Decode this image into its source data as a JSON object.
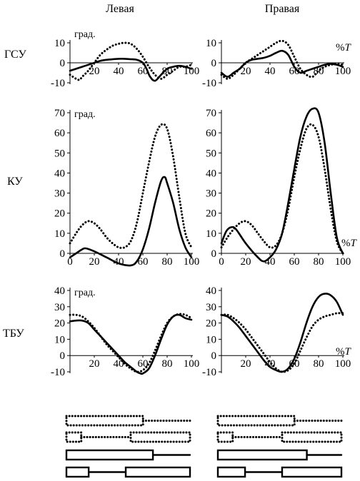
{
  "columns": [
    "Левая",
    "Правая"
  ],
  "row_labels": [
    "ГСУ",
    "КУ",
    "ТБУ"
  ],
  "unit_label": "град.",
  "x_unit_label": "%T",
  "colors": {
    "ink": "#000000"
  },
  "chart_data": [
    {
      "type": "line",
      "row": "ГСУ",
      "side": "Левая",
      "xlim": [
        0,
        100
      ],
      "ylim": [
        -10,
        10
      ],
      "x_ticks": [
        20,
        40,
        60,
        80,
        100
      ],
      "y_ticks": [
        10,
        0,
        -10
      ],
      "series": [
        {
          "style": "solid",
          "x": [
            0,
            5,
            10,
            15,
            20,
            25,
            30,
            35,
            40,
            45,
            50,
            55,
            60,
            63,
            66,
            70,
            75,
            80,
            85,
            90,
            95,
            100
          ],
          "y": [
            -4,
            -3,
            -2,
            -1,
            0,
            1,
            1.5,
            1.8,
            2,
            2,
            1.8,
            1.5,
            0,
            -3,
            -7,
            -9,
            -6,
            -3,
            -2,
            -1.5,
            -2,
            -3
          ]
        },
        {
          "style": "dotted",
          "x": [
            0,
            5,
            8,
            10,
            15,
            20,
            25,
            30,
            35,
            40,
            45,
            50,
            55,
            60,
            65,
            70,
            75,
            80,
            85,
            90,
            95,
            100
          ],
          "y": [
            -6,
            -8,
            -8.5,
            -7,
            -4,
            0,
            4,
            6.5,
            8.5,
            9.5,
            10,
            9.5,
            7,
            3,
            -2,
            -6,
            -8,
            -6,
            -4,
            -2,
            -2,
            -1
          ]
        }
      ]
    },
    {
      "type": "line",
      "row": "ГСУ",
      "side": "Правая",
      "xlim": [
        0,
        100
      ],
      "ylim": [
        -10,
        10
      ],
      "x_ticks": [
        20,
        40,
        60,
        80,
        100
      ],
      "y_ticks": [
        10,
        0,
        -10
      ],
      "series": [
        {
          "style": "solid",
          "x": [
            0,
            5,
            10,
            15,
            20,
            25,
            30,
            35,
            40,
            45,
            50,
            55,
            60,
            65,
            70,
            75,
            80,
            85,
            90,
            95,
            100
          ],
          "y": [
            -5,
            -7,
            -5,
            -3,
            0,
            1.5,
            2,
            2.5,
            3.5,
            5,
            6,
            4,
            -2,
            -5,
            -4,
            -3,
            -2,
            -1,
            -0.5,
            -1,
            -2
          ]
        },
        {
          "style": "dotted",
          "x": [
            0,
            5,
            10,
            15,
            20,
            25,
            30,
            35,
            40,
            45,
            50,
            55,
            60,
            65,
            70,
            75,
            80,
            85,
            90,
            95,
            100
          ],
          "y": [
            -6,
            -8,
            -6,
            -3,
            0,
            2,
            4,
            6,
            8,
            10,
            11,
            9,
            3,
            -3,
            -6,
            -7,
            -4,
            -2,
            -1,
            -0.5,
            -1
          ]
        }
      ]
    },
    {
      "type": "line",
      "row": "КУ",
      "side": "Левая",
      "xlim": [
        0,
        100
      ],
      "ylim": [
        0,
        70
      ],
      "x_ticks": [
        0,
        20,
        40,
        60,
        80,
        100
      ],
      "y_ticks": [
        70,
        60,
        50,
        40,
        30,
        20,
        10,
        0
      ],
      "series": [
        {
          "style": "solid",
          "x": [
            0,
            5,
            10,
            13,
            20,
            30,
            40,
            50,
            55,
            60,
            65,
            70,
            75,
            78,
            80,
            85,
            90,
            95,
            100
          ],
          "y": [
            -2,
            0,
            2,
            2.5,
            1,
            -2,
            -5,
            -6,
            -4,
            2,
            12,
            25,
            36,
            38,
            35,
            25,
            12,
            3,
            -2
          ]
        },
        {
          "style": "dotted",
          "x": [
            0,
            5,
            10,
            15,
            20,
            25,
            30,
            35,
            40,
            45,
            50,
            55,
            60,
            65,
            70,
            75,
            80,
            85,
            90,
            95,
            100
          ],
          "y": [
            5,
            10,
            14,
            16,
            15,
            12,
            8,
            5,
            3,
            3,
            6,
            15,
            30,
            45,
            58,
            64,
            62,
            48,
            28,
            10,
            3
          ]
        }
      ]
    },
    {
      "type": "line",
      "row": "КУ",
      "side": "Правая",
      "xlim": [
        0,
        100
      ],
      "ylim": [
        0,
        70
      ],
      "x_ticks": [
        0,
        20,
        40,
        60,
        80,
        100
      ],
      "y_ticks": [
        70,
        60,
        50,
        40,
        30,
        20,
        10,
        0
      ],
      "series": [
        {
          "style": "solid",
          "x": [
            0,
            4,
            8,
            12,
            20,
            30,
            35,
            40,
            45,
            50,
            55,
            60,
            65,
            70,
            75,
            80,
            85,
            90,
            95,
            100
          ],
          "y": [
            5,
            11,
            13,
            12,
            5,
            -2,
            -4,
            -2,
            2,
            10,
            25,
            42,
            58,
            68,
            72,
            70,
            55,
            30,
            8,
            0
          ]
        },
        {
          "style": "dotted",
          "x": [
            0,
            5,
            10,
            15,
            20,
            25,
            30,
            35,
            40,
            45,
            50,
            55,
            60,
            65,
            70,
            75,
            80,
            85,
            90,
            95,
            100
          ],
          "y": [
            3,
            8,
            12,
            15,
            16,
            14,
            10,
            6,
            3,
            4,
            10,
            22,
            38,
            52,
            62,
            64,
            58,
            42,
            22,
            6,
            0
          ]
        }
      ]
    },
    {
      "type": "line",
      "row": "ТБУ",
      "side": "Левая",
      "xlim": [
        0,
        100
      ],
      "ylim": [
        -10,
        40
      ],
      "x_ticks": [
        20,
        40,
        60,
        80,
        100
      ],
      "y_ticks": [
        40,
        30,
        20,
        10,
        0,
        -10
      ],
      "series": [
        {
          "style": "solid",
          "x": [
            0,
            5,
            10,
            15,
            20,
            25,
            30,
            35,
            40,
            45,
            50,
            55,
            58,
            60,
            65,
            70,
            75,
            80,
            85,
            90,
            95,
            100
          ],
          "y": [
            21,
            21.5,
            21.5,
            20,
            16,
            12,
            8,
            4,
            0,
            -4,
            -7,
            -10,
            -11,
            -11,
            -8,
            0,
            10,
            19,
            24,
            25,
            23,
            22
          ]
        },
        {
          "style": "dotted",
          "x": [
            0,
            5,
            10,
            15,
            20,
            25,
            30,
            35,
            40,
            45,
            50,
            55,
            60,
            65,
            70,
            75,
            80,
            85,
            90,
            95,
            100
          ],
          "y": [
            25,
            25,
            24,
            21,
            17,
            12,
            7,
            3,
            -1,
            -5,
            -8,
            -10,
            -9,
            -5,
            3,
            12,
            20,
            24,
            25.5,
            25,
            23
          ]
        }
      ]
    },
    {
      "type": "line",
      "row": "ТБУ",
      "side": "Правая",
      "xlim": [
        0,
        100
      ],
      "ylim": [
        -10,
        40
      ],
      "x_ticks": [
        20,
        40,
        60,
        80,
        100
      ],
      "y_ticks": [
        40,
        30,
        20,
        10,
        0,
        -10
      ],
      "series": [
        {
          "style": "solid",
          "x": [
            0,
            5,
            10,
            15,
            20,
            25,
            30,
            35,
            40,
            45,
            50,
            55,
            60,
            65,
            70,
            75,
            80,
            85,
            90,
            95,
            100
          ],
          "y": [
            25,
            24,
            21,
            17,
            12,
            7,
            2,
            -3,
            -7,
            -9,
            -10,
            -8,
            -2,
            8,
            20,
            30,
            36,
            38,
            37,
            33,
            25
          ]
        },
        {
          "style": "dotted",
          "x": [
            0,
            5,
            10,
            15,
            20,
            25,
            30,
            35,
            40,
            45,
            50,
            55,
            60,
            65,
            70,
            75,
            80,
            85,
            90,
            95,
            100
          ],
          "y": [
            25,
            25,
            23,
            20,
            16,
            11,
            6,
            1,
            -4,
            -8,
            -10,
            -9,
            -5,
            3,
            11,
            18,
            22,
            24,
            25,
            26,
            26
          ]
        }
      ]
    },
    {
      "type": "bar",
      "row": "phases",
      "side": "Левая",
      "xlim": [
        0,
        100
      ],
      "rows": [
        {
          "style": "dotted",
          "boxes": [
            [
              0,
              62
            ]
          ],
          "tail": [
            62,
            100
          ]
        },
        {
          "style": "dotted",
          "boxes": [
            [
              0,
              12
            ],
            [
              52,
              100
            ]
          ],
          "tail": [
            12,
            52
          ]
        },
        {
          "style": "solid",
          "boxes": [
            [
              0,
              70
            ]
          ],
          "tail": [
            70,
            100
          ]
        },
        {
          "style": "solid",
          "boxes": [
            [
              0,
              18
            ],
            [
              48,
              100
            ]
          ],
          "tail": [
            18,
            48
          ]
        }
      ]
    },
    {
      "type": "bar",
      "row": "phases",
      "side": "Правая",
      "xlim": [
        0,
        100
      ],
      "rows": [
        {
          "style": "dotted",
          "boxes": [
            [
              0,
              62
            ]
          ],
          "tail": [
            62,
            100
          ]
        },
        {
          "style": "dotted",
          "boxes": [
            [
              0,
              12
            ],
            [
              52,
              100
            ]
          ],
          "tail": [
            12,
            52
          ]
        },
        {
          "style": "solid",
          "boxes": [
            [
              0,
              72
            ]
          ],
          "tail": [
            72,
            100
          ]
        },
        {
          "style": "solid",
          "boxes": [
            [
              0,
              22
            ],
            [
              52,
              100
            ]
          ],
          "tail": [
            22,
            52
          ]
        }
      ]
    }
  ]
}
